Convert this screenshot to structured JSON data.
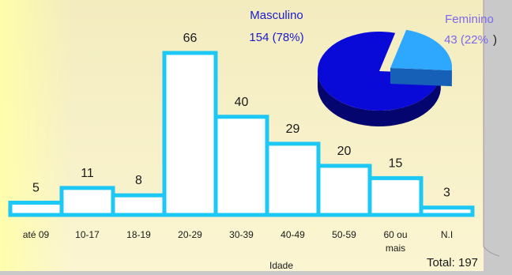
{
  "chart_data": [
    {
      "type": "bar",
      "categories": [
        "até 09",
        "10-17",
        "18-19",
        "20-29",
        "30-39",
        "40-49",
        "50-59",
        "60 ou mais",
        "N.I"
      ],
      "category_lines": [
        [
          "até 09"
        ],
        [
          "10-17"
        ],
        [
          "18-19"
        ],
        [
          "20-29"
        ],
        [
          "30-39"
        ],
        [
          "40-49"
        ],
        [
          "50-59"
        ],
        [
          "60 ou",
          "mais"
        ],
        [
          "N.I"
        ]
      ],
      "values": [
        5,
        11,
        8,
        66,
        40,
        29,
        20,
        15,
        3
      ],
      "xlabel": "Idade",
      "ylabel": "",
      "ylim": [
        0,
        66
      ],
      "total_label": "Total: 197",
      "bar_fill": "#ffffff",
      "bar_stroke": "#1ec8f5",
      "data_label_color": "#1a1a1a",
      "tick_label_color": "#1a1a1a"
    },
    {
      "type": "pie",
      "slices": [
        {
          "name": "Masculino",
          "value_label": "154 (78%)",
          "value": 154,
          "percent": 78,
          "color": "#0a0ad8",
          "side_color": "#050570",
          "label_color": "#1a1acc"
        },
        {
          "name": "Feminino",
          "value_label": "43 (22%",
          "value": 43,
          "percent": 22,
          "color": "#2ea8ff",
          "side_color": "#1660b8",
          "label_color": "#7b68ee"
        }
      ]
    }
  ],
  "colors": {
    "plot_background_top": "#f3ecbf",
    "plot_background_bottom": "#fbf5d2",
    "plot_left_glow": "#ffffa8",
    "window_frame": "#c9c9c9"
  }
}
